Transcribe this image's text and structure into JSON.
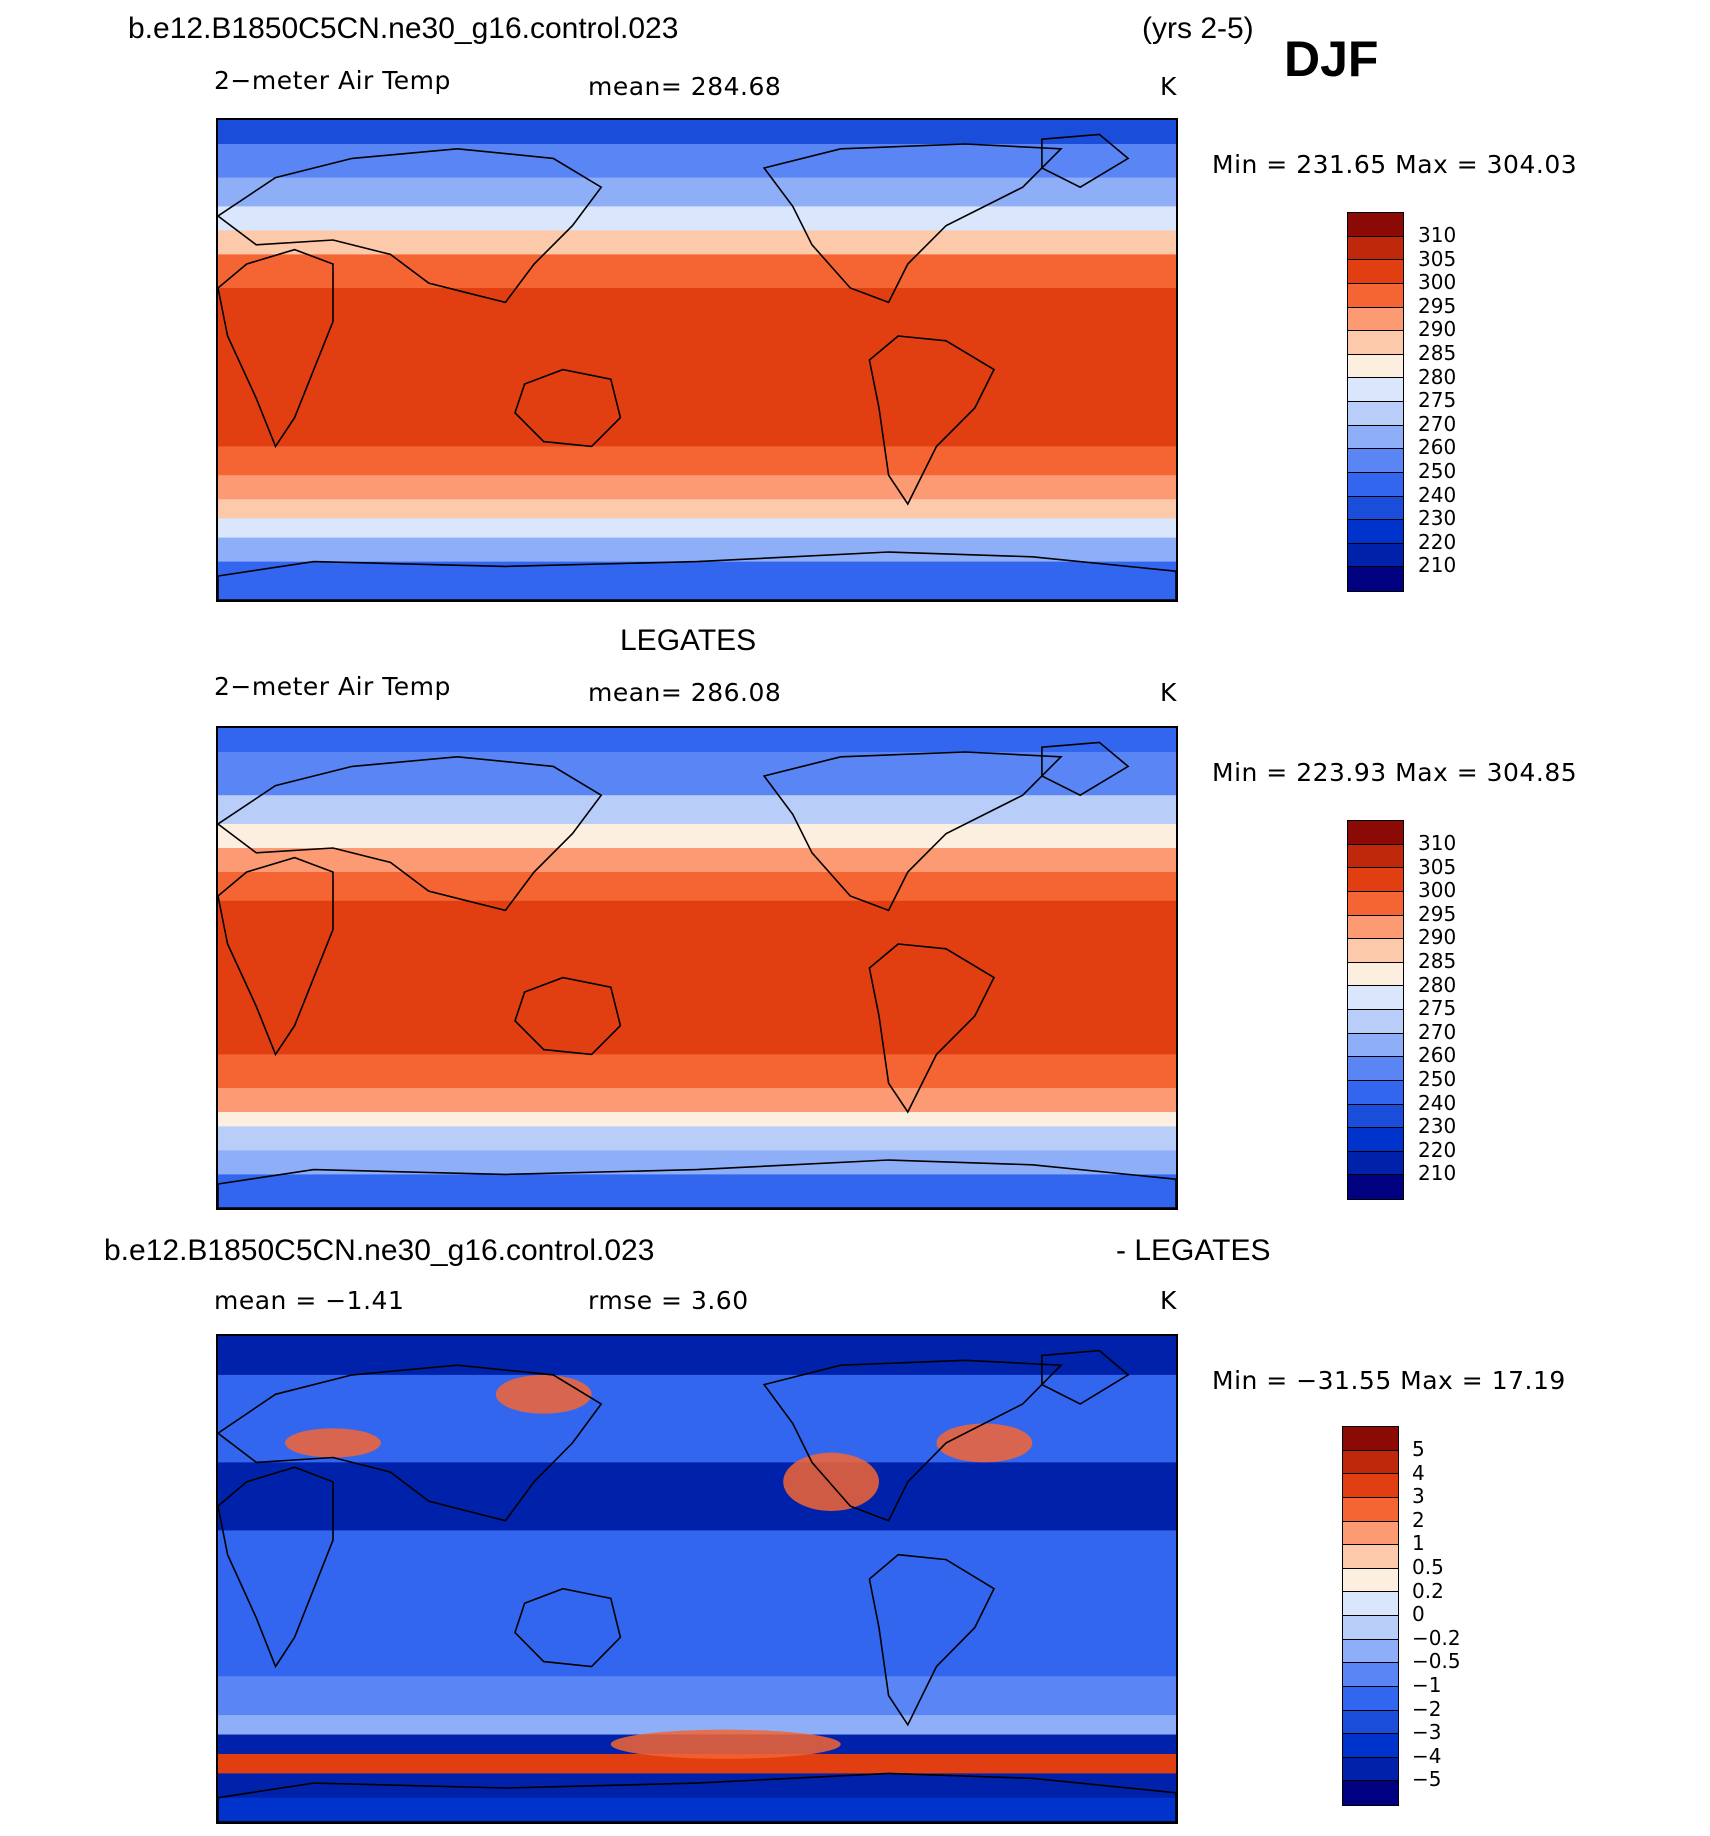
{
  "header": {
    "case_name": "b.e12.B1850C5CN.ne30_g16.control.023",
    "years": "(yrs 2-5)",
    "season": "DJF"
  },
  "obs_title": "LEGATES",
  "diff_header": {
    "case_name": "b.e12.B1850C5CN.ne30_g16.control.023",
    "minus_obs": "- LEGATES"
  },
  "colors": {
    "abs_scale": [
      "#000080",
      "#0022aa",
      "#0033cc",
      "#1a4dd9",
      "#3366ee",
      "#5a85f5",
      "#8eaef8",
      "#b9cdf9",
      "#d9e6fb",
      "#fcefdf",
      "#fcc9ab",
      "#fb9a73",
      "#f46533",
      "#e13f12",
      "#c0280c",
      "#8b0a05"
    ],
    "diff_scale": [
      "#000080",
      "#0022aa",
      "#0033cc",
      "#1a4dd9",
      "#3366ee",
      "#5a85f5",
      "#8eaef8",
      "#b9cdf9",
      "#d9e6fb",
      "#fcefdf",
      "#fcc9ab",
      "#fb9a73",
      "#f46533",
      "#e13f12",
      "#c0280c",
      "#8b0a05"
    ]
  },
  "panels": [
    {
      "variable": "2−meter Air Temp",
      "stat_text": "mean=  284.68",
      "units": "K",
      "minmax": "Min  =  231.65  Max  =  304.03",
      "colorbar_labels": [
        "310",
        "305",
        "300",
        "295",
        "290",
        "285",
        "280",
        "275",
        "270",
        "260",
        "250",
        "240",
        "230",
        "220",
        "210"
      ]
    },
    {
      "variable": "2−meter Air Temp",
      "stat_text": "mean=  286.08",
      "units": "K",
      "minmax": "Min  =  223.93  Max  =  304.85",
      "colorbar_labels": [
        "310",
        "305",
        "300",
        "295",
        "290",
        "285",
        "280",
        "275",
        "270",
        "260",
        "250",
        "240",
        "230",
        "220",
        "210"
      ]
    },
    {
      "variable": "mean  =    −1.41",
      "stat_text": "rmse  =      3.60",
      "units": "K",
      "minmax": "Min  =  −31.55  Max  =    17.19",
      "colorbar_labels": [
        "5",
        "4",
        "3",
        "2",
        "1",
        "0.5",
        "0.2",
        "0",
        "−0.2",
        "−0.5",
        "−1",
        "−2",
        "−3",
        "−4",
        "−5"
      ]
    }
  ]
}
